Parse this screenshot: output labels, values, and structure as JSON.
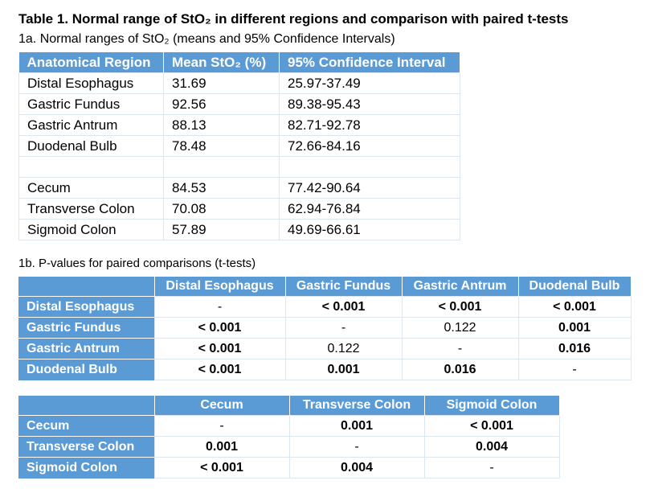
{
  "title": "Table 1. Normal range of StO₂ in different regions and comparison with paired t-tests",
  "table_1a": {
    "caption": "1a. Normal ranges of StO₂ (means and 95% Confidence Intervals)",
    "headers": [
      "Anatomical Region",
      "Mean StO₂ (%)",
      "95% Confidence Interval"
    ],
    "rows": [
      [
        "Distal Esophagus",
        "31.69",
        "25.97-37.49"
      ],
      [
        "Gastric Fundus",
        "92.56",
        "89.38-95.43"
      ],
      [
        "Gastric Antrum",
        "88.13",
        "82.71-92.78"
      ],
      [
        "Duodenal Bulb",
        "78.48",
        "72.66-84.16"
      ],
      [
        "",
        "",
        ""
      ],
      [
        "Cecum",
        "84.53",
        "77.42-90.64"
      ],
      [
        "Transverse Colon",
        "70.08",
        "62.94-76.84"
      ],
      [
        "Sigmoid Colon",
        "57.89",
        "49.69-66.61"
      ]
    ]
  },
  "table_1b_upper": {
    "caption": "1b. P-values for paired comparisons (t-tests)",
    "columns": [
      "Distal Esophagus",
      "Gastric Fundus",
      "Gastric Antrum",
      "Duodenal Bulb"
    ],
    "rows": [
      {
        "label": "Distal Esophagus",
        "cells": [
          "-",
          "< 0.001",
          "< 0.001",
          "< 0.001"
        ]
      },
      {
        "label": "Gastric Fundus",
        "cells": [
          "< 0.001",
          "-",
          "0.122",
          "0.001"
        ]
      },
      {
        "label": "Gastric Antrum",
        "cells": [
          "< 0.001",
          "0.122",
          "-",
          "0.016"
        ]
      },
      {
        "label": "Duodenal Bulb",
        "cells": [
          "< 0.001",
          "0.001",
          "0.016",
          "-"
        ]
      }
    ]
  },
  "table_1b_lower": {
    "columns": [
      "Cecum",
      "Transverse Colon",
      "Sigmoid Colon"
    ],
    "rows": [
      {
        "label": "Cecum",
        "cells": [
          "-",
          "0.001",
          "< 0.001"
        ]
      },
      {
        "label": "Transverse Colon",
        "cells": [
          "0.001",
          "-",
          "0.004"
        ]
      },
      {
        "label": "Sigmoid Colon",
        "cells": [
          "< 0.001",
          "0.004",
          "-"
        ]
      }
    ]
  },
  "colors": {
    "header_bg": "#5b9bd5",
    "header_text": "#ffffff",
    "grid_line": "#dce6f1"
  }
}
